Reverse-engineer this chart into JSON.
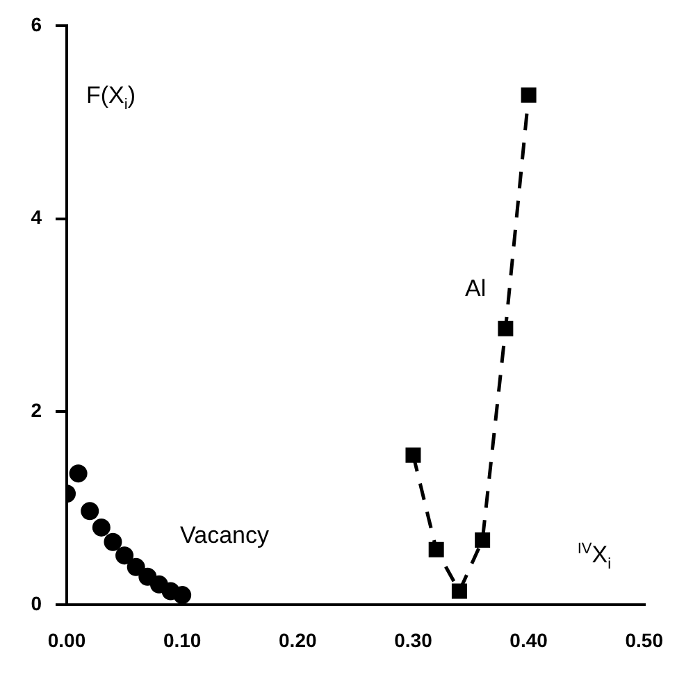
{
  "chart_data": {
    "type": "scatter",
    "xlabel": "$^{IV}$X$_{i}$",
    "ylabel": "F(X$_{i}$)",
    "xlim": [
      0,
      0.5
    ],
    "xticks": [
      {
        "value": 0,
        "label": "0.00"
      },
      {
        "value": 0.1,
        "label": "0.10"
      },
      {
        "value": 0.2,
        "label": "0.20"
      },
      {
        "value": 0.3,
        "label": "0.30"
      },
      {
        "value": 0.4,
        "label": "0.40"
      },
      {
        "value": 0.5,
        "label": "0.50"
      }
    ],
    "ylim": [
      0,
      6
    ],
    "yticks": [
      0,
      2,
      4,
      6
    ],
    "grid": false,
    "legend": false,
    "series": [
      {
        "name": "Vacancy",
        "marker": "circle",
        "color": "#000000",
        "x": [
          0,
          0.01,
          0.02,
          0.03,
          0.04,
          0.05,
          0.06,
          0.07,
          0.08,
          0.09,
          0.1
        ],
        "values": [
          1.15,
          1.36,
          0.97,
          0.8,
          0.65,
          0.51,
          0.39,
          0.29,
          0.21,
          0.14,
          0.1
        ]
      },
      {
        "name": "Al",
        "type": "line",
        "marker": "square",
        "line_style": "dashed",
        "color": "#000000",
        "x": [
          0.3,
          0.32,
          0.34,
          0.36,
          0.38,
          0.4
        ],
        "values": [
          1.55,
          0.57,
          0.14,
          0.67,
          2.86,
          5.28
        ]
      }
    ]
  }
}
